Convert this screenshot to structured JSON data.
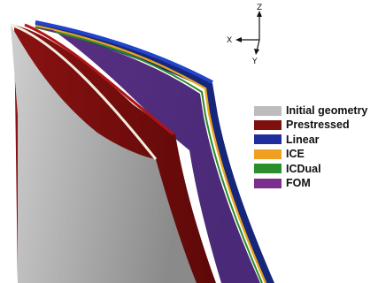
{
  "axes": {
    "z": "Z",
    "x": "X",
    "y": "Y"
  },
  "legend": [
    {
      "label": "Initial geometry",
      "color": "#bdbdbd"
    },
    {
      "label": "Prestressed",
      "color": "#7e1010"
    },
    {
      "label": "Linear",
      "color": "#1f2e9c"
    },
    {
      "label": "ICE",
      "color": "#f0a020"
    },
    {
      "label": "ICDual",
      "color": "#2b8f2b"
    },
    {
      "label": "FOM",
      "color": "#7a2f8f"
    }
  ]
}
